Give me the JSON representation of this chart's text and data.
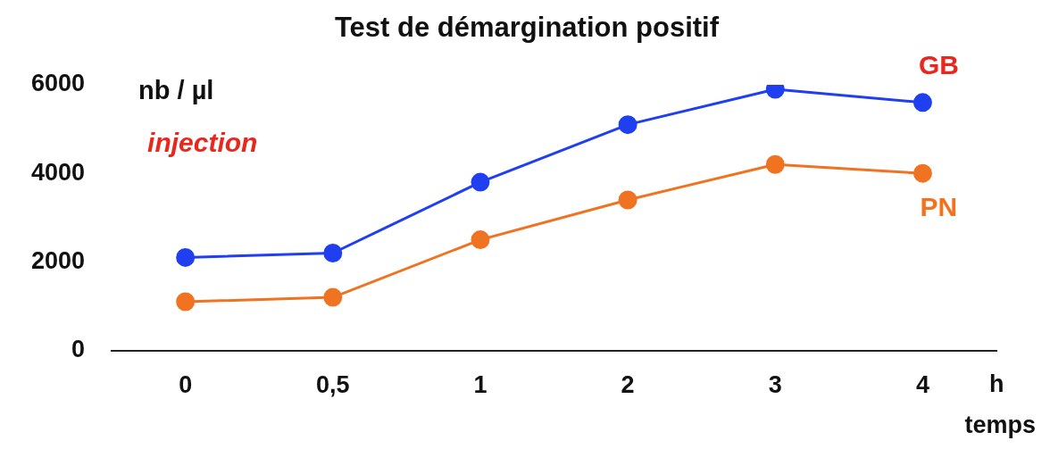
{
  "chart_data": {
    "type": "line",
    "title": "Test de démargination positif",
    "xlabel": "temps",
    "ylabel": "nb / µl",
    "annotations": [
      "injection",
      "h"
    ],
    "categories": [
      "0",
      "0,5",
      "1",
      "2",
      "3",
      "4"
    ],
    "series": [
      {
        "name": "GB",
        "color": "#1f3ff0",
        "values": [
          2100,
          2200,
          3800,
          5100,
          5900,
          5600
        ]
      },
      {
        "name": "PN",
        "color": "#f07322",
        "values": [
          1100,
          1200,
          2500,
          3400,
          4200,
          4000
        ]
      }
    ],
    "ylim": [
      0,
      6000
    ],
    "yticks": [
      0,
      2000,
      4000,
      6000
    ],
    "grid": false,
    "legend": false,
    "marker": "circle",
    "line_style": "solid"
  }
}
